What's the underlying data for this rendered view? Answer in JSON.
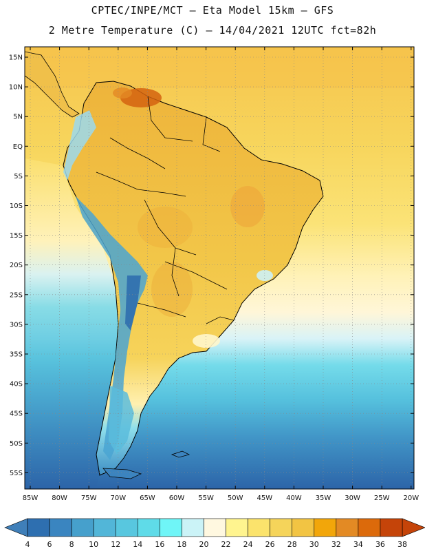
{
  "title_line1": "CPTEC/INPE/MCT –  Eta Model 15km – GFS",
  "title_line2": "2 Metre Temperature (C) – 14/04/2021 12UTC fct=82h",
  "lat_labels": [
    "15N",
    "10N",
    "5N",
    "EQ",
    "5S",
    "10S",
    "15S",
    "20S",
    "25S",
    "30S",
    "35S",
    "40S",
    "45S",
    "50S",
    "55S"
  ],
  "lon_labels": [
    "85W",
    "80W",
    "75W",
    "70W",
    "65W",
    "60W",
    "55W",
    "50W",
    "45W",
    "40W",
    "35W",
    "30W",
    "25W",
    "20W"
  ],
  "colorbar": {
    "labels": [
      "4",
      "6",
      "8",
      "10",
      "12",
      "14",
      "16",
      "18",
      "20",
      "22",
      "24",
      "26",
      "28",
      "30",
      "32",
      "34",
      "36",
      "38"
    ],
    "colors": [
      "#2e6fb0",
      "#3a85c0",
      "#46a0cc",
      "#52b6d8",
      "#58c7df",
      "#5fdbe8",
      "#6ff5f7",
      "#cbf3f7",
      "#fff8e0",
      "#fff48f",
      "#fbe36c",
      "#f5d45a",
      "#f2c443",
      "#f2a60a",
      "#e38a24",
      "#dc6a0b",
      "#c54409"
    ],
    "left_arrow_color": "#3f7fb9",
    "right_arrow_color": "#c54409"
  },
  "palette": {
    "ocean_deep": "#2c64a8",
    "ocean_mid": "#3c8dc4",
    "ocean_teal": "#4fbfdb",
    "ocean_cyan": "#63dbe9",
    "ocean_light": "#d2f1f6",
    "warm_pale": "#fff3c0",
    "warm_yellow": "#fbe06a",
    "warm_gold": "#f4cc48",
    "warm_orange": "#eeb037",
    "hot": "#d4630f",
    "andes": "#2f6eae",
    "border": "#000000"
  }
}
